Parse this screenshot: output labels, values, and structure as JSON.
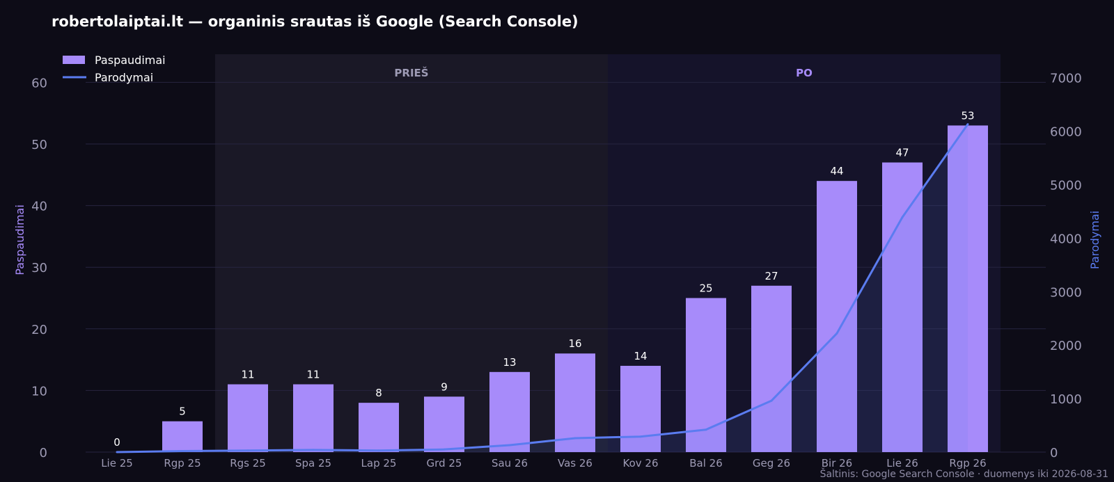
{
  "title": "robertolaiptai.lt — organinis srautas iš Google (Search Console)",
  "source_note": "Šaltinis: Google Search Console · duomenys iki 2026-08-31",
  "colors": {
    "background": "#0d0c17",
    "bar": "#a78bfa",
    "line": "#5b7cf0",
    "grid": "#272440",
    "before_region": "#1a1826",
    "after_region": "#15132a",
    "before_label": "#9e9bb5",
    "after_label": "#a78bfa"
  },
  "chart_data": {
    "type": "bar",
    "categories": [
      "Lie 25",
      "Rgp 25",
      "Rgs 25",
      "Spa 25",
      "Lap 25",
      "Grd 25",
      "Sau 26",
      "Vas 26",
      "Kov 26",
      "Bal 26",
      "Geg 26",
      "Bir 26",
      "Lie 26",
      "Rgp 26"
    ],
    "series": [
      {
        "name": "Paspaudimai",
        "type": "bar",
        "axis": "left",
        "values": [
          0,
          5,
          11,
          11,
          8,
          9,
          13,
          16,
          14,
          25,
          27,
          44,
          47,
          53
        ]
      },
      {
        "name": "Parodymai",
        "type": "line",
        "axis": "right",
        "values": [
          0,
          20,
          30,
          40,
          30,
          50,
          130,
          260,
          290,
          420,
          960,
          2220,
          4390,
          6130
        ]
      }
    ],
    "ylabel": "Paspaudimai",
    "ylim": [
      0,
      60
    ],
    "yticks": [
      0,
      10,
      20,
      30,
      40,
      50,
      60
    ],
    "y2label": "Parodymai",
    "y2lim": [
      0,
      7000
    ],
    "y2ticks": [
      0,
      1000,
      2000,
      3000,
      4000,
      5000,
      6000,
      7000
    ],
    "regions": [
      {
        "label": "PRIEŠ",
        "from": "Rgs 25",
        "to": "Kov 26"
      },
      {
        "label": "PO",
        "from": "Kov 26",
        "to": "Rgp 26"
      }
    ],
    "legend_position": "top-left",
    "grid": true
  }
}
